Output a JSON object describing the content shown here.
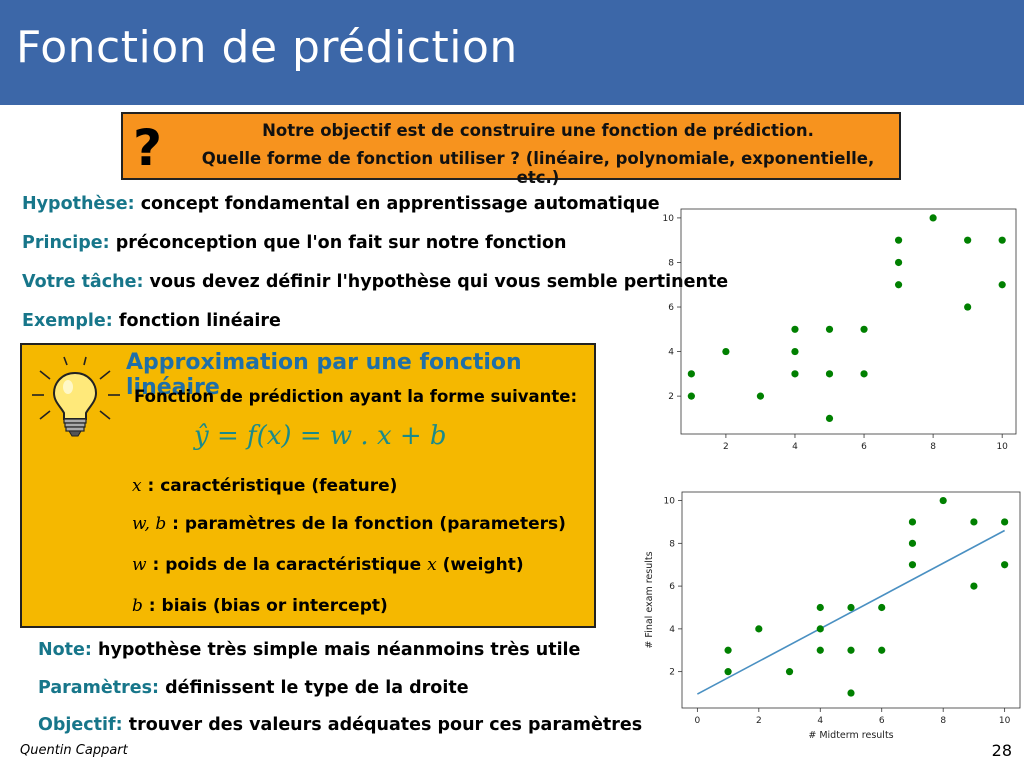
{
  "title": "Fonction de prédiction",
  "question_box": {
    "line1": "Notre objectif est de construire une fonction de prédiction.",
    "line2": "Quelle forme de fonction utiliser ? (linéaire, polynomiale, exponentielle, etc.)"
  },
  "items": [
    {
      "label": "Hypothèse:",
      "text": "concept fondamental en apprentissage automatique"
    },
    {
      "label": "Principe:",
      "text": "préconception que l'on fait sur notre fonction"
    },
    {
      "label": "Votre tâche:",
      "text": "vous devez définir l'hypothèse qui vous semble pertinente"
    },
    {
      "label": "Exemple:",
      "text": "fonction linéaire"
    }
  ],
  "idea_box": {
    "title": "Approximation par une fonction linéaire",
    "subtitle": "Fonction de prédiction ayant la forme suivante:",
    "formula": "ŷ = f(x) = w . x + b",
    "defs": [
      {
        "sym": "x",
        "text": "caractéristique (feature)"
      },
      {
        "sym": "w, b",
        "text": "paramètres de la fonction (parameters)"
      },
      {
        "sym": "w",
        "text": "poids de la caractéristique",
        "sym2": "x",
        "text2": "(weight)"
      },
      {
        "sym": "b",
        "text": "biais (bias or intercept)"
      }
    ]
  },
  "bottom_items": [
    {
      "label": "Note:",
      "text": "hypothèse très simple mais néanmoins très utile"
    },
    {
      "label": "Paramètres:",
      "text": "définissent le type de la droite"
    },
    {
      "label": "Objectif:",
      "text": "trouver des valeurs adéquates pour ces paramètres"
    }
  ],
  "footer": {
    "author": "Quentin Cappart",
    "page": "28"
  },
  "colors": {
    "header": "#3c67a8",
    "label": "#17768a",
    "orange_box": "#f7931e",
    "yellow_box": "#f5b800",
    "point": "#008000",
    "line": "#4a90c2"
  },
  "chart_data": [
    {
      "type": "scatter",
      "title": "",
      "xlabel": "",
      "ylabel": "",
      "xlim": [
        0.7,
        10.4
      ],
      "ylim": [
        0.3,
        10.4
      ],
      "xticks": [
        2,
        4,
        6,
        8,
        10
      ],
      "yticks": [
        2,
        4,
        6,
        8,
        10
      ],
      "grid": false,
      "points": [
        [
          1,
          2
        ],
        [
          1,
          3
        ],
        [
          2,
          4
        ],
        [
          3,
          2
        ],
        [
          4,
          3
        ],
        [
          4,
          4
        ],
        [
          4,
          5
        ],
        [
          5,
          1
        ],
        [
          5,
          3
        ],
        [
          5,
          5
        ],
        [
          6,
          3
        ],
        [
          6,
          5
        ],
        [
          7,
          7
        ],
        [
          7,
          8
        ],
        [
          7,
          9
        ],
        [
          8,
          10
        ],
        [
          9,
          6
        ],
        [
          9,
          9
        ],
        [
          10,
          7
        ],
        [
          10,
          9
        ]
      ]
    },
    {
      "type": "scatter",
      "title": "",
      "xlabel": "# Midterm results",
      "ylabel": "# Final exam results",
      "xlim": [
        -0.5,
        10.5
      ],
      "ylim": [
        0.3,
        10.4
      ],
      "xticks": [
        0,
        2,
        4,
        6,
        8,
        10
      ],
      "yticks": [
        2,
        4,
        6,
        8,
        10
      ],
      "grid": false,
      "points": [
        [
          1,
          2
        ],
        [
          1,
          3
        ],
        [
          2,
          4
        ],
        [
          3,
          2
        ],
        [
          4,
          3
        ],
        [
          4,
          4
        ],
        [
          4,
          5
        ],
        [
          5,
          1
        ],
        [
          5,
          3
        ],
        [
          5,
          5
        ],
        [
          6,
          3
        ],
        [
          6,
          5
        ],
        [
          7,
          7
        ],
        [
          7,
          8
        ],
        [
          7,
          9
        ],
        [
          8,
          10
        ],
        [
          9,
          6
        ],
        [
          9,
          9
        ],
        [
          10,
          7
        ],
        [
          10,
          9
        ]
      ],
      "regression_line": {
        "x": [
          0,
          10
        ],
        "y": [
          0.95,
          8.6
        ]
      }
    }
  ]
}
